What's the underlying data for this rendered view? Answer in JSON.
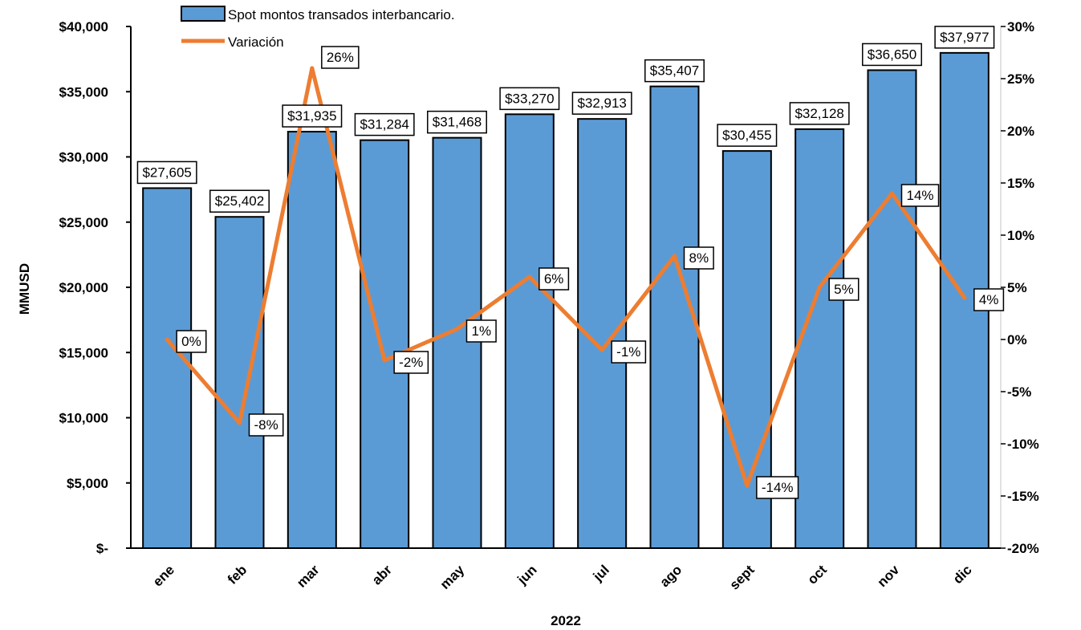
{
  "chart_data": {
    "type": "bar",
    "categories": [
      "ene",
      "feb",
      "mar",
      "abr",
      "may",
      "jun",
      "jul",
      "ago",
      "sept",
      "oct",
      "nov",
      "dic"
    ],
    "series": [
      {
        "name": "Spot montos transados interbancario.",
        "type": "bar",
        "axis": "left",
        "color": "#5b9bd5",
        "values": [
          27605,
          25402,
          31935,
          31284,
          31468,
          33270,
          32913,
          35407,
          30455,
          32128,
          36650,
          37977
        ],
        "labels": [
          "$27,605",
          "$25,402",
          "$31,935",
          "$31,284",
          "$31,468",
          "$33,270",
          "$32,913",
          "$35,407",
          "$30,455",
          "$32,128",
          "$36,650",
          "$37,977"
        ]
      },
      {
        "name": "Variación",
        "type": "line",
        "axis": "right",
        "color": "#ed7d31",
        "values": [
          0,
          -8,
          26,
          -2,
          1,
          6,
          -1,
          8,
          -14,
          5,
          14,
          4
        ],
        "labels": [
          "0%",
          "-8%",
          "26%",
          "-2%",
          "1%",
          "6%",
          "-1%",
          "8%",
          "-14%",
          "5%",
          "14%",
          "4%"
        ]
      }
    ],
    "xlabel": "2022",
    "ylabel": "MMUSD",
    "ylim": [
      0,
      40000
    ],
    "y2lim": [
      -20,
      30
    ],
    "left_ticks": {
      "values": [
        0,
        5000,
        10000,
        15000,
        20000,
        25000,
        30000,
        35000,
        40000
      ],
      "labels": [
        "$-",
        "$5,000",
        "$10,000",
        "$15,000",
        "$20,000",
        "$25,000",
        "$30,000",
        "$35,000",
        "$40,000"
      ]
    },
    "right_ticks": {
      "values": [
        -20,
        -15,
        -10,
        -5,
        0,
        5,
        10,
        15,
        20,
        25,
        30
      ],
      "labels": [
        "-20%",
        "-15%",
        "-10%",
        "-5%",
        "0%",
        "5%",
        "10%",
        "15%",
        "20%",
        "25%",
        "30%"
      ]
    },
    "grid": false,
    "legend_position": "top-left"
  }
}
